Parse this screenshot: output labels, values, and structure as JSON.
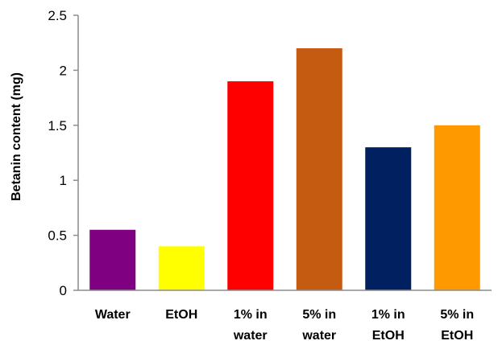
{
  "chart_data": {
    "type": "bar",
    "title": "",
    "xlabel": "",
    "ylabel": "Betanin content (mg)",
    "ylim": [
      0,
      2.5
    ],
    "yticks": [
      "0",
      "0.5",
      "1",
      "1.5",
      "2",
      "2.5"
    ],
    "grid": false,
    "legend": "none",
    "categories": [
      [
        "Water"
      ],
      [
        "EtOH"
      ],
      [
        "1% in",
        "water"
      ],
      [
        "5% in",
        "water"
      ],
      [
        "1% in",
        "EtOH"
      ],
      [
        "5% in",
        "EtOH"
      ]
    ],
    "values": [
      0.55,
      0.4,
      1.9,
      2.2,
      1.3,
      1.5
    ],
    "colors": [
      "#7f0080",
      "#ffff00",
      "#ff0000",
      "#c55a11",
      "#002060",
      "#ff9900"
    ]
  }
}
